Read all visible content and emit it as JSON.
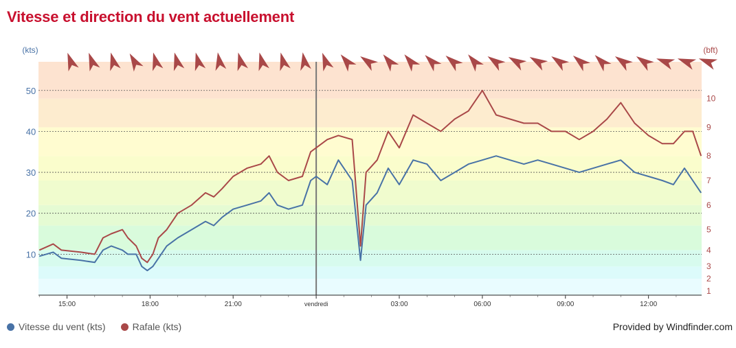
{
  "page": {
    "title": "Vitesse et direction du vent actuellement"
  },
  "credit": "Provided by Windfinder.com",
  "legend": [
    {
      "label": "Vitesse du vent (kts)",
      "color": "#4872a6"
    },
    {
      "label": "Rafale (kts)",
      "color": "#a94848"
    }
  ],
  "chart_data": {
    "type": "line",
    "left_axis": {
      "label": "(kts)",
      "ticks": [
        10,
        20,
        30,
        40,
        50
      ],
      "range": [
        0,
        57
      ]
    },
    "right_axis": {
      "label": "(bft)",
      "ticks": [
        {
          "label": "1",
          "kts": 1
        },
        {
          "label": "2",
          "kts": 4
        },
        {
          "label": "3",
          "kts": 7
        },
        {
          "label": "4",
          "kts": 11
        },
        {
          "label": "5",
          "kts": 16
        },
        {
          "label": "6",
          "kts": 22
        },
        {
          "label": "7",
          "kts": 28
        },
        {
          "label": "8",
          "kts": 34
        },
        {
          "label": "9",
          "kts": 41
        },
        {
          "label": "10",
          "kts": 48
        }
      ]
    },
    "x_axis": {
      "range_hours": [
        13.97,
        37.92
      ],
      "ticks": [
        {
          "label": "15:00",
          "h": 15
        },
        {
          "label": "18:00",
          "h": 18
        },
        {
          "label": "21:00",
          "h": 21
        },
        {
          "label": "vendredi",
          "h": 24
        },
        {
          "label": "03:00",
          "h": 27
        },
        {
          "label": "06:00",
          "h": 30
        },
        {
          "label": "09:00",
          "h": 33
        },
        {
          "label": "12:00",
          "h": 36
        }
      ]
    },
    "bft_bands": [
      {
        "from": 0,
        "to": 4,
        "color": "#e9fcff"
      },
      {
        "from": 4,
        "to": 7,
        "color": "#dcfbfb"
      },
      {
        "from": 7,
        "to": 11,
        "color": "#d7fbee"
      },
      {
        "from": 11,
        "to": 17,
        "color": "#d9fbdc"
      },
      {
        "from": 17,
        "to": 22,
        "color": "#e5fbd3"
      },
      {
        "from": 22,
        "to": 28,
        "color": "#f0fcce"
      },
      {
        "from": 28,
        "to": 34,
        "color": "#fafdcc"
      },
      {
        "from": 34,
        "to": 41,
        "color": "#fffcd0"
      },
      {
        "from": 41,
        "to": 48,
        "color": "#fdeccf"
      },
      {
        "from": 48,
        "to": 57,
        "color": "#fde3d0"
      }
    ],
    "day_marker_h": 24,
    "series": [
      {
        "name": "Vitesse du vent (kts)",
        "color": "#4872a6",
        "x": [
          14,
          14.5,
          14.8,
          15.5,
          16,
          16.3,
          16.6,
          17,
          17.2,
          17.5,
          17.7,
          17.9,
          18.1,
          18.3,
          18.6,
          19,
          19.5,
          20,
          20.3,
          20.6,
          21,
          21.5,
          22,
          22.3,
          22.6,
          23,
          23.5,
          23.8,
          24,
          24.4,
          24.8,
          25.3,
          25.6,
          25.8,
          26.2,
          26.6,
          27,
          27.5,
          28,
          28.5,
          29,
          29.5,
          30,
          30.5,
          31,
          31.5,
          32,
          32.5,
          33,
          33.5,
          34,
          34.5,
          35,
          35.5,
          36,
          36.5,
          36.9,
          37.3,
          37.6,
          37.9
        ],
        "values": [
          9.5,
          10.5,
          9,
          8.5,
          8,
          11,
          12,
          11,
          10,
          10,
          7,
          6,
          7,
          9,
          12,
          14,
          16,
          18,
          17,
          19,
          21,
          22,
          23,
          25,
          22,
          21,
          22,
          28,
          29,
          27,
          33,
          28,
          8.5,
          22,
          25,
          31,
          27,
          33,
          32,
          28,
          30,
          32,
          33,
          34,
          33,
          32,
          33,
          32,
          31,
          30,
          31,
          32,
          33,
          30,
          29,
          28,
          27,
          31,
          28,
          25
        ]
      },
      {
        "name": "Rafale (kts)",
        "color": "#a94848",
        "x": [
          14,
          14.5,
          14.8,
          15.5,
          16,
          16.3,
          16.6,
          17,
          17.2,
          17.5,
          17.7,
          17.9,
          18.1,
          18.3,
          18.6,
          19,
          19.5,
          20,
          20.3,
          20.6,
          21,
          21.5,
          22,
          22.3,
          22.6,
          23,
          23.5,
          23.8,
          24,
          24.4,
          24.8,
          25.3,
          25.6,
          25.8,
          26.2,
          26.6,
          27,
          27.5,
          28,
          28.5,
          29,
          29.5,
          30,
          30.5,
          31,
          31.5,
          32,
          32.5,
          33,
          33.5,
          34,
          34.5,
          35,
          35.5,
          36,
          36.5,
          36.9,
          37.3,
          37.6,
          37.9
        ],
        "values": [
          11,
          12.5,
          11,
          10.5,
          10,
          14,
          15,
          16,
          14,
          12,
          9,
          8,
          10,
          14,
          16,
          20,
          22,
          25,
          24,
          26,
          29,
          31,
          32,
          34,
          30,
          28,
          29,
          35,
          36,
          38,
          39,
          38,
          12,
          30,
          33,
          40,
          36,
          44,
          42,
          40,
          43,
          45,
          50,
          44,
          43,
          42,
          42,
          40,
          40,
          38,
          40,
          43,
          47,
          42,
          39,
          37,
          37,
          40,
          40,
          34
        ]
      }
    ]
  }
}
